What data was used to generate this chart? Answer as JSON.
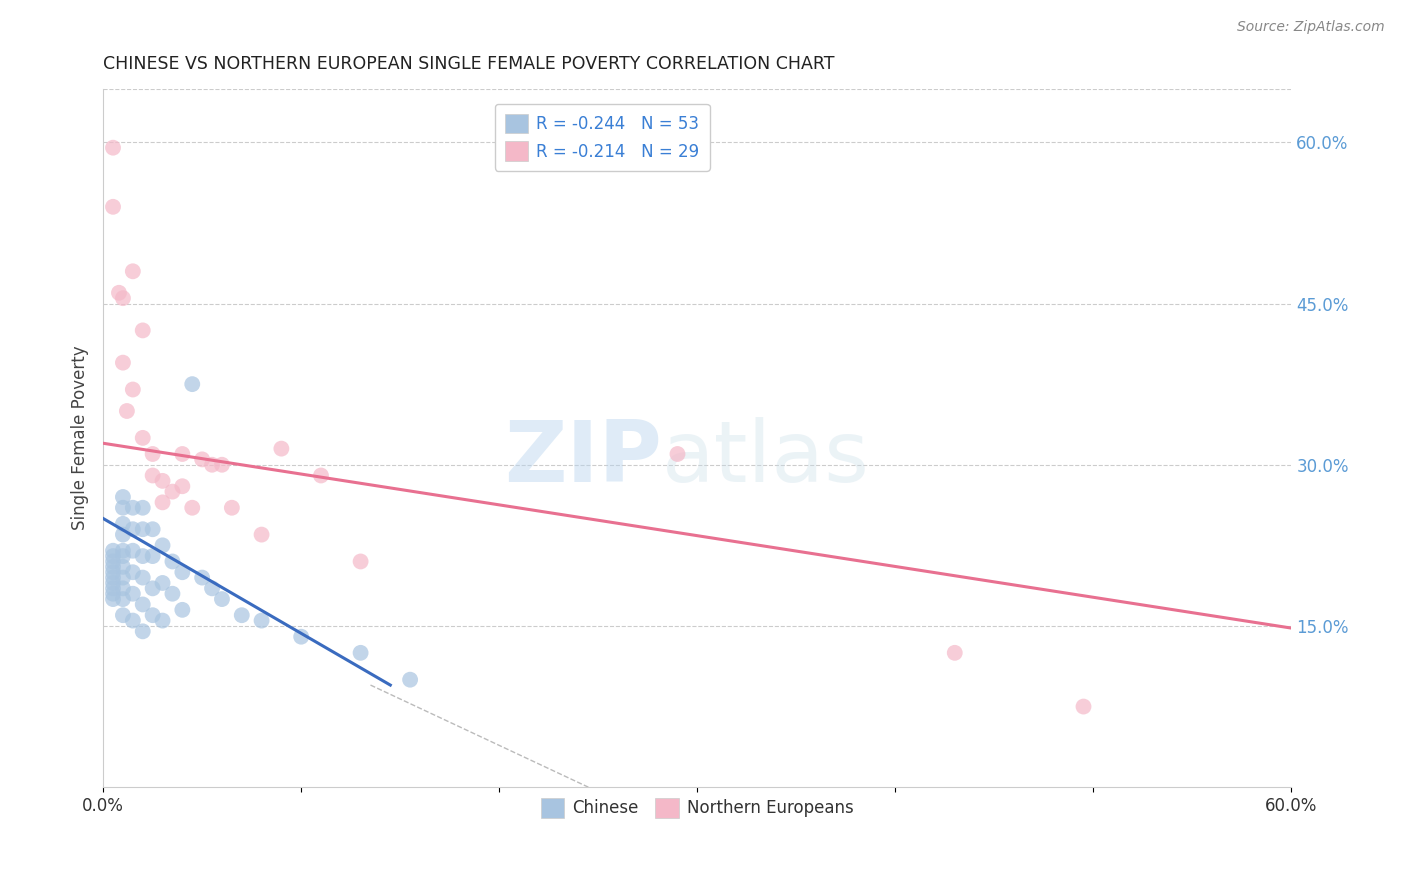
{
  "title": "CHINESE VS NORTHERN EUROPEAN SINGLE FEMALE POVERTY CORRELATION CHART",
  "source": "Source: ZipAtlas.com",
  "ylabel": "Single Female Poverty",
  "watermark_zip": "ZIP",
  "watermark_atlas": "atlas",
  "xlim": [
    0.0,
    0.6
  ],
  "ylim": [
    0.0,
    0.65
  ],
  "xtick_vals": [
    0.0,
    0.1,
    0.2,
    0.3,
    0.4,
    0.5,
    0.6
  ],
  "xtick_labels_show": [
    "0.0%",
    "",
    "",
    "",
    "",
    "",
    "60.0%"
  ],
  "ytick_vals_right": [
    0.15,
    0.3,
    0.45,
    0.6
  ],
  "ytick_labels_right": [
    "15.0%",
    "30.0%",
    "45.0%",
    "60.0%"
  ],
  "grid_color": "#cccccc",
  "background_color": "#ffffff",
  "chinese_color": "#a8c4e0",
  "northern_color": "#f4b8c8",
  "chinese_line_color": "#3a6bbf",
  "northern_line_color": "#e87090",
  "dashed_color": "#bbbbbb",
  "legend_R_chinese": "R = -0.244",
  "legend_N_chinese": "N = 53",
  "legend_R_northern": "R = -0.214",
  "legend_N_northern": "N = 29",
  "legend_text_color": "#3a7fd5",
  "right_tick_color": "#5b9bd5",
  "chinese_scatter_x": [
    0.005,
    0.005,
    0.005,
    0.005,
    0.005,
    0.005,
    0.005,
    0.005,
    0.005,
    0.005,
    0.01,
    0.01,
    0.01,
    0.01,
    0.01,
    0.01,
    0.01,
    0.01,
    0.01,
    0.01,
    0.01,
    0.015,
    0.015,
    0.015,
    0.015,
    0.015,
    0.015,
    0.02,
    0.02,
    0.02,
    0.02,
    0.02,
    0.02,
    0.025,
    0.025,
    0.025,
    0.025,
    0.03,
    0.03,
    0.03,
    0.035,
    0.035,
    0.04,
    0.04,
    0.045,
    0.05,
    0.055,
    0.06,
    0.07,
    0.08,
    0.1,
    0.13,
    0.155
  ],
  "chinese_scatter_y": [
    0.22,
    0.215,
    0.21,
    0.205,
    0.2,
    0.195,
    0.19,
    0.185,
    0.18,
    0.175,
    0.27,
    0.26,
    0.245,
    0.235,
    0.22,
    0.215,
    0.205,
    0.195,
    0.185,
    0.175,
    0.16,
    0.26,
    0.24,
    0.22,
    0.2,
    0.18,
    0.155,
    0.26,
    0.24,
    0.215,
    0.195,
    0.17,
    0.145,
    0.24,
    0.215,
    0.185,
    0.16,
    0.225,
    0.19,
    0.155,
    0.21,
    0.18,
    0.2,
    0.165,
    0.375,
    0.195,
    0.185,
    0.175,
    0.16,
    0.155,
    0.14,
    0.125,
    0.1
  ],
  "northern_scatter_x": [
    0.005,
    0.005,
    0.008,
    0.01,
    0.01,
    0.012,
    0.015,
    0.015,
    0.02,
    0.02,
    0.025,
    0.025,
    0.03,
    0.03,
    0.035,
    0.04,
    0.04,
    0.045,
    0.05,
    0.055,
    0.06,
    0.065,
    0.08,
    0.09,
    0.11,
    0.13,
    0.29,
    0.43,
    0.495
  ],
  "northern_scatter_y": [
    0.595,
    0.54,
    0.46,
    0.455,
    0.395,
    0.35,
    0.48,
    0.37,
    0.425,
    0.325,
    0.31,
    0.29,
    0.285,
    0.265,
    0.275,
    0.31,
    0.28,
    0.26,
    0.305,
    0.3,
    0.3,
    0.26,
    0.235,
    0.315,
    0.29,
    0.21,
    0.31,
    0.125,
    0.075
  ],
  "chinese_line_x": [
    0.0,
    0.145
  ],
  "chinese_line_y": [
    0.25,
    0.095
  ],
  "northern_line_x": [
    0.0,
    0.6
  ],
  "northern_line_y": [
    0.32,
    0.148
  ],
  "dashed_line_x": [
    0.135,
    0.245
  ],
  "dashed_line_y": [
    0.095,
    0.0
  ]
}
